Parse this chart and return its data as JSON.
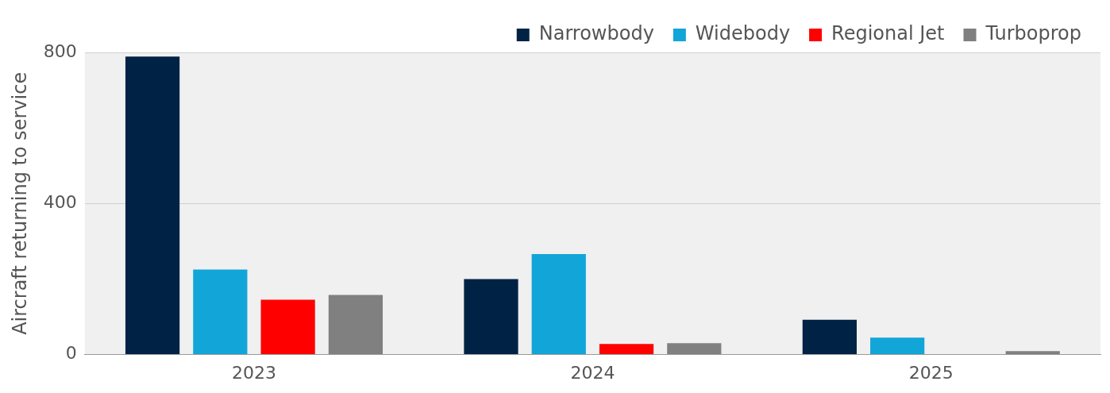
{
  "chart_data": {
    "type": "bar",
    "ylabel": "Aircraft returning to service",
    "categories": [
      "2023",
      "2024",
      "2025"
    ],
    "series": [
      {
        "name": "Narrowbody",
        "color": "#002244",
        "values": [
          789,
          200,
          92
        ]
      },
      {
        "name": "Widebody",
        "color": "#12a5d8",
        "values": [
          225,
          266,
          45
        ]
      },
      {
        "name": "Regional Jet",
        "color": "#ff0000",
        "values": [
          145,
          28,
          null
        ]
      },
      {
        "name": "Turboprop",
        "color": "#808080",
        "values": [
          158,
          30,
          9
        ]
      }
    ],
    "ylim": [
      0,
      800
    ],
    "yticks": [
      0,
      400,
      800
    ],
    "grid": "y",
    "legend": "top right"
  }
}
